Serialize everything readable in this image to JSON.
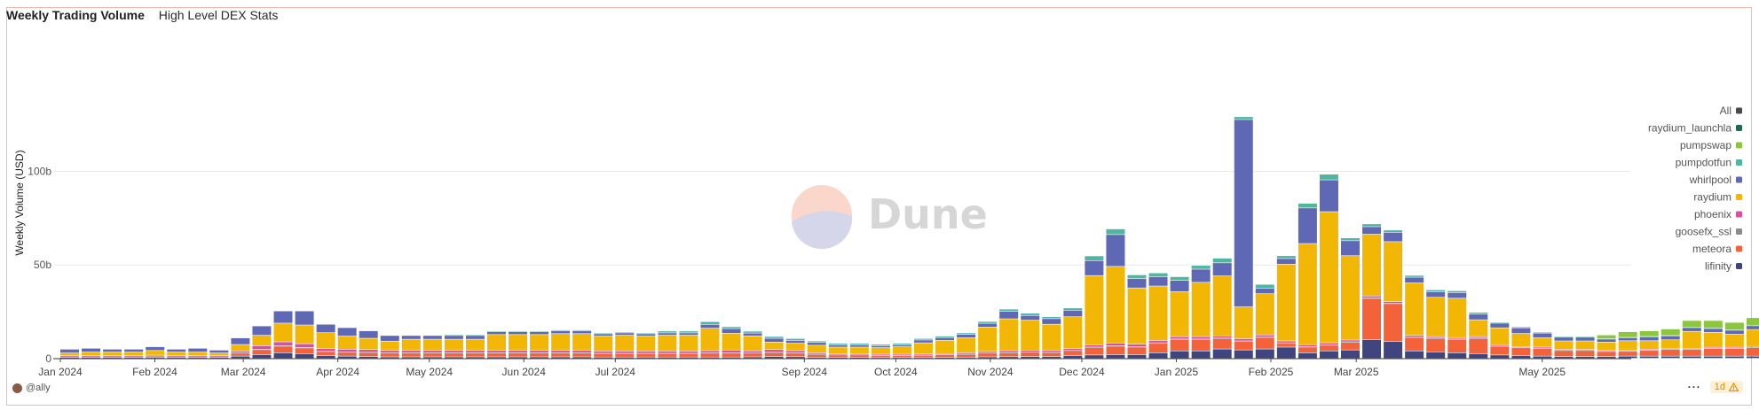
{
  "header": {
    "title": "Weekly Trading Volume",
    "subtitle": "High Level DEX Stats"
  },
  "footer": {
    "user": "@ally",
    "menu": "···",
    "freshness": "1d",
    "warning_icon": "warning-icon"
  },
  "watermark": {
    "text": "Dune"
  },
  "chart_data": {
    "type": "bar",
    "stacked": true,
    "ylabel": "Weekly Volume (USD)",
    "yticks": [
      "0",
      "50b",
      "100b"
    ],
    "ytick_values": [
      0,
      50,
      100
    ],
    "ylim": [
      0,
      130
    ],
    "grid": true,
    "legend_position": "right",
    "x_start": "2024-01-01",
    "x_labels": [
      "Jan 2024",
      "Feb 2024",
      "Mar 2024",
      "Apr 2024",
      "May 2024",
      "Jun 2024",
      "Jul 2024",
      "Sep 2024",
      "Oct 2024",
      "Nov 2024",
      "Dec 2024",
      "Jan 2025",
      "Feb 2025",
      "Mar 2025",
      "May 2025"
    ],
    "x_label_dates": [
      "2024-01-01",
      "2024-02-01",
      "2024-03-01",
      "2024-04-01",
      "2024-05-01",
      "2024-06-01",
      "2024-07-01",
      "2024-09-01",
      "2024-10-01",
      "2024-11-01",
      "2024-12-01",
      "2025-01-01",
      "2025-02-01",
      "2025-03-01",
      "2025-05-01"
    ],
    "legend": [
      {
        "name": "All",
        "color": "#4a4a4a"
      },
      {
        "name": "raydium_launchla",
        "color": "#1f6b4e"
      },
      {
        "name": "pumpswap",
        "color": "#8cc63f"
      },
      {
        "name": "pumpdotfun",
        "color": "#4fb6a0"
      },
      {
        "name": "whirlpool",
        "color": "#5f68b5"
      },
      {
        "name": "raydium",
        "color": "#f2b705"
      },
      {
        "name": "phoenix",
        "color": "#d94f9b"
      },
      {
        "name": "goosefx_ssl",
        "color": "#8a8a8a"
      },
      {
        "name": "meteora",
        "color": "#f4623a"
      },
      {
        "name": "lifinity",
        "color": "#404580"
      }
    ],
    "series": [
      {
        "name": "lifinity",
        "color": "#404580",
        "values": [
          0.5,
          0.5,
          0.5,
          0.5,
          0.6,
          0.5,
          0.5,
          0.5,
          1.2,
          2,
          3,
          2.5,
          1.5,
          1.2,
          1,
          0.8,
          0.8,
          0.8,
          0.8,
          0.8,
          0.8,
          0.8,
          0.8,
          0.8,
          0.8,
          0.7,
          0.7,
          0.7,
          0.7,
          0.7,
          0.7,
          0.7,
          0.8,
          1,
          0.9,
          0.6,
          0.5,
          0.5,
          0.4,
          0.4,
          0.4,
          0.5,
          0.6,
          0.8,
          0.9,
          1,
          1,
          1.5,
          1.8,
          2,
          2,
          3,
          4,
          4,
          5,
          4.5,
          5,
          6,
          3,
          4,
          4.5,
          10,
          9,
          4,
          3.5,
          3,
          2.5,
          1.8,
          1.5,
          1.2,
          1,
          1,
          1,
          1.2,
          1.2,
          1.2,
          1.2,
          1.2,
          1.2,
          1.2,
          1
        ]
      },
      {
        "name": "meteora",
        "color": "#f4623a",
        "values": [
          0.5,
          0.5,
          0.5,
          0.5,
          0.6,
          0.5,
          0.5,
          0.5,
          1.5,
          2.5,
          3.5,
          3,
          2,
          2,
          2,
          2,
          2,
          2,
          2,
          2,
          2,
          2,
          2,
          2,
          2,
          1.8,
          1.8,
          1.8,
          1.8,
          1.8,
          2,
          2,
          1.8,
          2,
          1.8,
          1.5,
          1.2,
          1.2,
          1.1,
          1.1,
          1.2,
          1.3,
          1.5,
          1.8,
          2,
          2.2,
          2,
          2.5,
          4,
          4.5,
          4,
          5,
          6,
          6,
          5.5,
          4.5,
          6,
          2,
          3,
          3,
          4,
          22,
          20,
          7,
          7,
          7,
          8,
          4.5,
          4,
          4,
          3,
          3,
          2.5,
          2.5,
          3,
          3.5,
          3.5,
          4,
          4,
          4.5,
          5,
          4,
          3.5
        ]
      },
      {
        "name": "goosefx_ssl",
        "color": "#8a8a8a",
        "values": [
          0.1,
          0.1,
          0.1,
          0.1,
          0.1,
          0.1,
          0.1,
          0.1,
          0.2,
          0.3,
          0.3,
          0.3,
          0.2,
          0.2,
          0.2,
          0.2,
          0.2,
          0.2,
          0.2,
          0.2,
          0.2,
          0.2,
          0.2,
          0.2,
          0.2,
          0.2,
          0.2,
          0.2,
          0.2,
          0.2,
          0.2,
          0.2,
          0.2,
          0.2,
          0.2,
          0.1,
          0.1,
          0.1,
          0.1,
          0.1,
          0.1,
          0.1,
          0.1,
          0.2,
          0.2,
          0.2,
          0.2,
          0.2,
          0.2,
          0.3,
          0.3,
          0.3,
          0.3,
          0.3,
          0.3,
          0.3,
          0.3,
          0.3,
          0.3,
          0.3,
          0.3,
          0.3,
          0.3,
          0.3,
          0.3,
          0.3,
          0.3,
          0.2,
          0.2,
          0.2,
          0.2,
          0.2,
          0.2,
          0.2,
          0.2,
          0.2,
          0.2,
          0.2,
          0.2,
          0.2,
          0.2,
          0.2,
          0.2
        ]
      },
      {
        "name": "phoenix",
        "color": "#d94f9b",
        "values": [
          0.3,
          0.3,
          0.3,
          0.3,
          0.4,
          0.3,
          0.3,
          0.3,
          1,
          2,
          2,
          2,
          1.5,
          1.5,
          1.5,
          1.2,
          1.2,
          1.2,
          1.2,
          1.2,
          1.2,
          1.2,
          1.2,
          1.2,
          1.2,
          1.2,
          1.2,
          1.2,
          1.2,
          1.2,
          1.2,
          1.5,
          1.2,
          1.5,
          1.2,
          0.8,
          0.7,
          0.7,
          0.6,
          0.6,
          0.6,
          0.7,
          0.8,
          0.9,
          1,
          1,
          1,
          1,
          1.2,
          1.3,
          1.3,
          1.3,
          1.3,
          1.3,
          1.2,
          1.2,
          1.2,
          1,
          1,
          1,
          1,
          1,
          1,
          1,
          0.8,
          0.8,
          0.8,
          0.8,
          0.6,
          0.6,
          0.6,
          0.6,
          0.5,
          0.5,
          0.5,
          0.5,
          0.5,
          0.5,
          0.5,
          0.5,
          0.5,
          0.5,
          0.4
        ]
      },
      {
        "name": "raydium",
        "color": "#f2b705",
        "values": [
          1.5,
          2,
          2,
          2,
          2.5,
          2,
          2,
          1.5,
          3.5,
          5.5,
          10,
          10,
          8.5,
          7,
          6,
          5,
          6,
          6,
          6,
          6,
          8.5,
          8.5,
          8.5,
          9,
          9,
          8,
          8.5,
          8,
          8.5,
          8.5,
          12,
          9,
          8,
          4,
          4,
          4,
          3.5,
          3.5,
          3.5,
          4,
          6,
          7,
          8,
          13,
          17,
          16,
          14,
          17,
          37,
          41,
          30,
          29,
          24,
          29,
          32,
          17,
          22,
          41,
          54,
          70,
          45,
          33,
          32,
          28,
          21,
          21,
          9,
          9,
          7,
          5,
          4.5,
          4.5,
          4.5,
          5,
          4.5,
          4.5,
          9,
          8,
          7,
          9,
          11,
          10,
          6
        ]
      },
      {
        "name": "whirlpool",
        "color": "#5f68b5",
        "values": [
          2,
          2,
          1.5,
          1.5,
          2,
          1.5,
          2,
          1.5,
          3.5,
          5,
          6.5,
          7.5,
          4.5,
          4.5,
          4,
          3,
          2,
          2,
          2,
          2,
          1.5,
          1.5,
          1.5,
          1.5,
          1.5,
          1.2,
          1.2,
          1.2,
          1.2,
          1.2,
          2,
          2.5,
          1.5,
          2,
          1.5,
          1.5,
          1.2,
          1.2,
          1,
          1,
          1.5,
          1.5,
          1.8,
          2,
          4,
          2.5,
          3,
          3.5,
          8,
          17,
          5,
          5,
          6,
          7,
          7,
          100,
          3,
          3,
          19,
          17,
          8,
          4,
          5,
          3,
          3,
          3,
          3,
          2.5,
          3,
          2.5,
          2,
          2,
          1.5,
          1.5,
          2,
          2,
          2,
          2,
          2,
          2,
          3,
          5,
          2
        ]
      },
      {
        "name": "pumpdotfun",
        "color": "#4fb6a0",
        "values": [
          0,
          0,
          0,
          0,
          0,
          0,
          0,
          0,
          0,
          0,
          0,
          0,
          0,
          0,
          0,
          0,
          0,
          0,
          0.5,
          0.5,
          0.5,
          0.5,
          0.5,
          0.5,
          0.5,
          0.5,
          0.5,
          0.5,
          1,
          1,
          1.5,
          1,
          1,
          1,
          1,
          0.8,
          0.8,
          0.8,
          0.8,
          0.8,
          0.8,
          0.8,
          0.8,
          1,
          1.2,
          1.2,
          1,
          1.2,
          2.5,
          3,
          2,
          2,
          2,
          2,
          2.5,
          1.5,
          2,
          1.5,
          2.5,
          3,
          1.5,
          1.5,
          1.2,
          1,
          1,
          1,
          1,
          0.5,
          0.5,
          0.5,
          0.3,
          0.3,
          0.3,
          0.3,
          0.3,
          0.3,
          0.3,
          0.3,
          0.3,
          0.3,
          0.3,
          0.3,
          0.3
        ]
      },
      {
        "name": "pumpswap",
        "color": "#8cc63f",
        "values": [
          0,
          0,
          0,
          0,
          0,
          0,
          0,
          0,
          0,
          0,
          0,
          0,
          0,
          0,
          0,
          0,
          0,
          0,
          0,
          0,
          0,
          0,
          0,
          0,
          0,
          0,
          0,
          0,
          0,
          0,
          0,
          0,
          0,
          0,
          0,
          0,
          0,
          0,
          0,
          0,
          0,
          0,
          0,
          0,
          0,
          0,
          0,
          0,
          0,
          0,
          0,
          0,
          0,
          0,
          0,
          0,
          0,
          0,
          0,
          0,
          0,
          0,
          0,
          0,
          0,
          0,
          0,
          0,
          0,
          0,
          0,
          0,
          2,
          3,
          3,
          3.5,
          3.5,
          4,
          4,
          4,
          6,
          7,
          9
        ]
      },
      {
        "name": "raydium_launchla",
        "color": "#1f6b4e",
        "values": [
          0,
          0,
          0,
          0,
          0,
          0,
          0,
          0,
          0,
          0,
          0,
          0,
          0,
          0,
          0,
          0,
          0,
          0,
          0,
          0,
          0,
          0,
          0,
          0,
          0,
          0,
          0,
          0,
          0,
          0,
          0,
          0,
          0,
          0,
          0,
          0,
          0,
          0,
          0,
          0,
          0,
          0,
          0,
          0,
          0,
          0,
          0,
          0,
          0,
          0,
          0,
          0,
          0,
          0,
          0,
          0,
          0,
          0,
          0,
          0,
          0,
          0,
          0,
          0,
          0,
          0,
          0,
          0,
          0,
          0,
          0,
          0,
          0,
          0,
          0,
          0,
          0,
          0,
          0,
          0,
          0,
          0.3,
          0.5
        ]
      }
    ]
  }
}
